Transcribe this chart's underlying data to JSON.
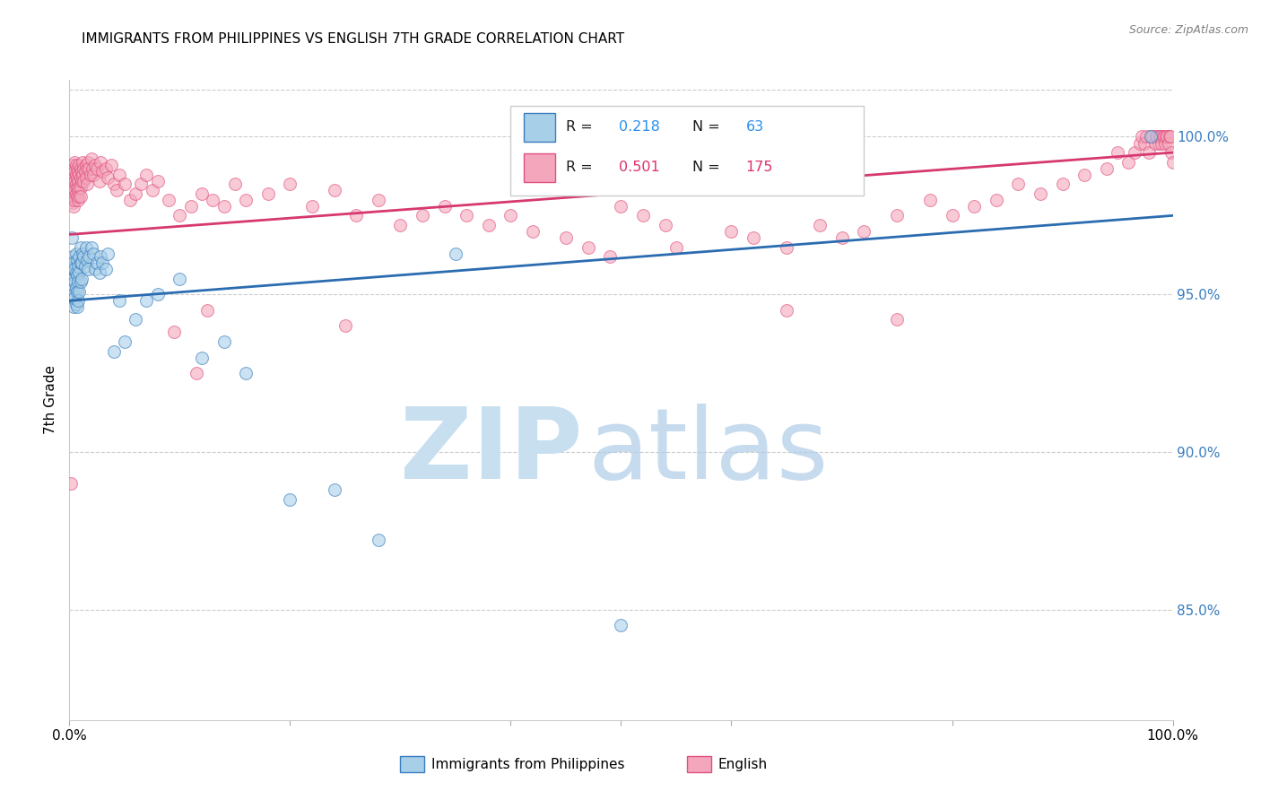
{
  "title": "IMMIGRANTS FROM PHILIPPINES VS ENGLISH 7TH GRADE CORRELATION CHART",
  "source": "Source: ZipAtlas.com",
  "ylabel": "7th Grade",
  "xlim": [
    0.0,
    1.0
  ],
  "ylim": [
    81.5,
    101.8
  ],
  "ytick_positions": [
    85.0,
    90.0,
    95.0,
    100.0
  ],
  "blue_color": "#a8cfe8",
  "pink_color": "#f4a7bc",
  "blue_edge_color": "#3a7dbf",
  "pink_edge_color": "#e05080",
  "blue_line_color": "#2b6cb0",
  "pink_line_color": "#d63870",
  "watermark_zip_color": "#c8dff0",
  "watermark_atlas_color": "#b0cce8",
  "right_tick_color": "#3a7dbf",
  "blue_line_x": [
    0.0,
    1.0
  ],
  "blue_line_y": [
    94.8,
    97.5
  ],
  "pink_line_x": [
    0.0,
    1.0
  ],
  "pink_line_y": [
    96.9,
    99.5
  ],
  "blue_scatter": [
    [
      0.001,
      95.8
    ],
    [
      0.001,
      95.2
    ],
    [
      0.002,
      96.8
    ],
    [
      0.002,
      96.0
    ],
    [
      0.002,
      95.5
    ],
    [
      0.003,
      96.2
    ],
    [
      0.003,
      95.8
    ],
    [
      0.003,
      95.3
    ],
    [
      0.003,
      94.9
    ],
    [
      0.004,
      96.0
    ],
    [
      0.004,
      95.5
    ],
    [
      0.004,
      95.0
    ],
    [
      0.004,
      94.6
    ],
    [
      0.005,
      95.8
    ],
    [
      0.005,
      95.4
    ],
    [
      0.005,
      94.9
    ],
    [
      0.006,
      96.3
    ],
    [
      0.006,
      95.7
    ],
    [
      0.006,
      95.2
    ],
    [
      0.006,
      94.7
    ],
    [
      0.007,
      96.1
    ],
    [
      0.007,
      95.6
    ],
    [
      0.007,
      95.1
    ],
    [
      0.007,
      94.6
    ],
    [
      0.008,
      95.9
    ],
    [
      0.008,
      95.4
    ],
    [
      0.008,
      94.8
    ],
    [
      0.009,
      96.2
    ],
    [
      0.009,
      95.7
    ],
    [
      0.009,
      95.1
    ],
    [
      0.01,
      96.5
    ],
    [
      0.01,
      96.0
    ],
    [
      0.01,
      95.4
    ],
    [
      0.011,
      96.0
    ],
    [
      0.011,
      95.5
    ],
    [
      0.012,
      96.3
    ],
    [
      0.013,
      96.2
    ],
    [
      0.014,
      95.9
    ],
    [
      0.015,
      96.5
    ],
    [
      0.016,
      96.1
    ],
    [
      0.017,
      95.8
    ],
    [
      0.018,
      96.2
    ],
    [
      0.02,
      96.5
    ],
    [
      0.022,
      96.3
    ],
    [
      0.023,
      95.8
    ],
    [
      0.025,
      96.0
    ],
    [
      0.027,
      95.7
    ],
    [
      0.028,
      96.2
    ],
    [
      0.03,
      96.0
    ],
    [
      0.033,
      95.8
    ],
    [
      0.035,
      96.3
    ],
    [
      0.04,
      93.2
    ],
    [
      0.045,
      94.8
    ],
    [
      0.05,
      93.5
    ],
    [
      0.06,
      94.2
    ],
    [
      0.07,
      94.8
    ],
    [
      0.08,
      95.0
    ],
    [
      0.1,
      95.5
    ],
    [
      0.12,
      93.0
    ],
    [
      0.14,
      93.5
    ],
    [
      0.16,
      92.5
    ],
    [
      0.2,
      88.5
    ],
    [
      0.24,
      88.8
    ],
    [
      0.28,
      87.2
    ],
    [
      0.35,
      96.3
    ],
    [
      0.5,
      84.5
    ],
    [
      0.98,
      100.0
    ]
  ],
  "pink_scatter": [
    [
      0.001,
      98.8
    ],
    [
      0.001,
      98.5
    ],
    [
      0.001,
      89.0
    ],
    [
      0.002,
      99.0
    ],
    [
      0.002,
      98.7
    ],
    [
      0.002,
      98.4
    ],
    [
      0.002,
      98.0
    ],
    [
      0.003,
      99.1
    ],
    [
      0.003,
      98.8
    ],
    [
      0.003,
      98.5
    ],
    [
      0.003,
      98.2
    ],
    [
      0.003,
      97.9
    ],
    [
      0.004,
      99.0
    ],
    [
      0.004,
      98.7
    ],
    [
      0.004,
      98.4
    ],
    [
      0.004,
      98.1
    ],
    [
      0.004,
      97.8
    ],
    [
      0.005,
      99.2
    ],
    [
      0.005,
      98.9
    ],
    [
      0.005,
      98.6
    ],
    [
      0.005,
      98.3
    ],
    [
      0.005,
      98.0
    ],
    [
      0.006,
      99.1
    ],
    [
      0.006,
      98.8
    ],
    [
      0.006,
      98.5
    ],
    [
      0.006,
      98.2
    ],
    [
      0.007,
      99.0
    ],
    [
      0.007,
      98.7
    ],
    [
      0.007,
      98.4
    ],
    [
      0.007,
      98.1
    ],
    [
      0.008,
      98.9
    ],
    [
      0.008,
      98.6
    ],
    [
      0.008,
      98.3
    ],
    [
      0.008,
      98.0
    ],
    [
      0.009,
      99.1
    ],
    [
      0.009,
      98.8
    ],
    [
      0.009,
      98.4
    ],
    [
      0.009,
      98.1
    ],
    [
      0.01,
      99.0
    ],
    [
      0.01,
      98.7
    ],
    [
      0.01,
      98.4
    ],
    [
      0.01,
      98.1
    ],
    [
      0.011,
      98.9
    ],
    [
      0.011,
      98.6
    ],
    [
      0.012,
      99.2
    ],
    [
      0.012,
      98.8
    ],
    [
      0.013,
      99.0
    ],
    [
      0.013,
      98.6
    ],
    [
      0.014,
      98.9
    ],
    [
      0.015,
      99.1
    ],
    [
      0.015,
      98.7
    ],
    [
      0.016,
      99.0
    ],
    [
      0.016,
      98.5
    ],
    [
      0.017,
      99.2
    ],
    [
      0.018,
      99.0
    ],
    [
      0.019,
      98.8
    ],
    [
      0.02,
      99.3
    ],
    [
      0.021,
      99.0
    ],
    [
      0.022,
      98.8
    ],
    [
      0.023,
      99.1
    ],
    [
      0.025,
      99.0
    ],
    [
      0.027,
      98.6
    ],
    [
      0.028,
      99.2
    ],
    [
      0.03,
      98.9
    ],
    [
      0.033,
      99.0
    ],
    [
      0.035,
      98.7
    ],
    [
      0.038,
      99.1
    ],
    [
      0.04,
      98.5
    ],
    [
      0.043,
      98.3
    ],
    [
      0.045,
      98.8
    ],
    [
      0.05,
      98.5
    ],
    [
      0.055,
      98.0
    ],
    [
      0.06,
      98.2
    ],
    [
      0.065,
      98.5
    ],
    [
      0.07,
      98.8
    ],
    [
      0.075,
      98.3
    ],
    [
      0.08,
      98.6
    ],
    [
      0.09,
      98.0
    ],
    [
      0.1,
      97.5
    ],
    [
      0.11,
      97.8
    ],
    [
      0.12,
      98.2
    ],
    [
      0.13,
      98.0
    ],
    [
      0.14,
      97.8
    ],
    [
      0.15,
      98.5
    ],
    [
      0.16,
      98.0
    ],
    [
      0.18,
      98.2
    ],
    [
      0.2,
      98.5
    ],
    [
      0.22,
      97.8
    ],
    [
      0.24,
      98.3
    ],
    [
      0.26,
      97.5
    ],
    [
      0.28,
      98.0
    ],
    [
      0.3,
      97.2
    ],
    [
      0.32,
      97.5
    ],
    [
      0.34,
      97.8
    ],
    [
      0.36,
      97.5
    ],
    [
      0.38,
      97.2
    ],
    [
      0.4,
      97.5
    ],
    [
      0.42,
      97.0
    ],
    [
      0.45,
      96.8
    ],
    [
      0.47,
      96.5
    ],
    [
      0.49,
      96.2
    ],
    [
      0.5,
      97.8
    ],
    [
      0.52,
      97.5
    ],
    [
      0.54,
      97.2
    ],
    [
      0.55,
      96.5
    ],
    [
      0.6,
      97.0
    ],
    [
      0.62,
      96.8
    ],
    [
      0.65,
      96.5
    ],
    [
      0.68,
      97.2
    ],
    [
      0.7,
      96.8
    ],
    [
      0.72,
      97.0
    ],
    [
      0.75,
      97.5
    ],
    [
      0.78,
      98.0
    ],
    [
      0.8,
      97.5
    ],
    [
      0.82,
      97.8
    ],
    [
      0.84,
      98.0
    ],
    [
      0.86,
      98.5
    ],
    [
      0.88,
      98.2
    ],
    [
      0.9,
      98.5
    ],
    [
      0.92,
      98.8
    ],
    [
      0.94,
      99.0
    ],
    [
      0.95,
      99.5
    ],
    [
      0.96,
      99.2
    ],
    [
      0.965,
      99.5
    ],
    [
      0.97,
      99.8
    ],
    [
      0.972,
      100.0
    ],
    [
      0.974,
      99.8
    ],
    [
      0.976,
      100.0
    ],
    [
      0.978,
      99.5
    ],
    [
      0.98,
      100.0
    ],
    [
      0.982,
      100.0
    ],
    [
      0.984,
      99.8
    ],
    [
      0.985,
      100.0
    ],
    [
      0.986,
      100.0
    ],
    [
      0.987,
      99.8
    ],
    [
      0.988,
      100.0
    ],
    [
      0.989,
      100.0
    ],
    [
      0.99,
      99.8
    ],
    [
      0.991,
      100.0
    ],
    [
      0.992,
      100.0
    ],
    [
      0.993,
      99.8
    ],
    [
      0.994,
      100.0
    ],
    [
      0.995,
      100.0
    ],
    [
      0.996,
      99.8
    ],
    [
      0.997,
      100.0
    ],
    [
      0.998,
      100.0
    ],
    [
      0.999,
      99.5
    ],
    [
      1.0,
      99.2
    ],
    [
      0.095,
      93.8
    ],
    [
      0.115,
      92.5
    ],
    [
      0.125,
      94.5
    ],
    [
      0.25,
      94.0
    ],
    [
      0.65,
      94.5
    ],
    [
      0.75,
      94.2
    ]
  ]
}
